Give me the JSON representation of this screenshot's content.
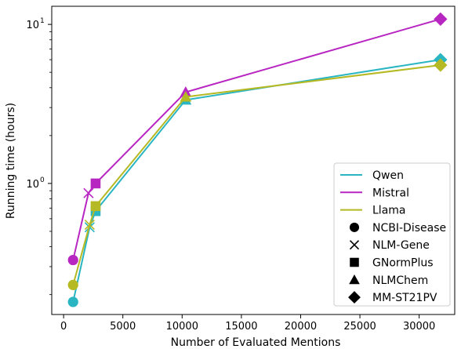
{
  "chart_data": {
    "type": "line",
    "title": "",
    "xlabel": "Number of Evaluated Mentions",
    "ylabel": "Running time (hours)",
    "yscale": "log",
    "xlim": [
      -1000,
      33000
    ],
    "ylim": [
      0.15,
      13
    ],
    "x_ticks": [
      0,
      5000,
      10000,
      15000,
      20000,
      25000,
      30000
    ],
    "x_tick_labels": [
      "0",
      "5000",
      "10000",
      "15000",
      "20000",
      "25000",
      "30000"
    ],
    "y_ticks": [
      1,
      10
    ],
    "y_tick_labels_base": [
      "10",
      "10"
    ],
    "y_tick_labels_exp": [
      "0",
      "1"
    ],
    "grid": false,
    "legend_position": "lower right",
    "series": [
      {
        "name": "Qwen",
        "color": "#2ab5c2",
        "points": [
          {
            "dataset": "NCBI-Disease",
            "x": 800,
            "y": 0.18
          },
          {
            "dataset": "NLM-Gene",
            "x": 2200,
            "y": 0.53
          },
          {
            "dataset": "GNormPlus",
            "x": 2700,
            "y": 0.67
          },
          {
            "dataset": "NLMChem",
            "x": 10300,
            "y": 3.35
          },
          {
            "dataset": "MM-ST21PV",
            "x": 31800,
            "y": 6.0
          }
        ]
      },
      {
        "name": "Mistral",
        "color": "#b826c2",
        "points": [
          {
            "dataset": "NCBI-Disease",
            "x": 800,
            "y": 0.33
          },
          {
            "dataset": "NLM-Gene",
            "x": 2100,
            "y": 0.87
          },
          {
            "dataset": "GNormPlus",
            "x": 2700,
            "y": 1.0
          },
          {
            "dataset": "NLMChem",
            "x": 10300,
            "y": 3.75
          },
          {
            "dataset": "MM-ST21PV",
            "x": 31800,
            "y": 10.8
          }
        ]
      },
      {
        "name": "Llama",
        "color": "#b5b923",
        "points": [
          {
            "dataset": "NCBI-Disease",
            "x": 800,
            "y": 0.23
          },
          {
            "dataset": "NLM-Gene",
            "x": 2200,
            "y": 0.55
          },
          {
            "dataset": "GNormPlus",
            "x": 2700,
            "y": 0.72
          },
          {
            "dataset": "NLMChem",
            "x": 10300,
            "y": 3.5
          },
          {
            "dataset": "MM-ST21PV",
            "x": 31800,
            "y": 5.55
          }
        ]
      }
    ],
    "marker_legend": [
      {
        "name": "NCBI-Disease",
        "marker": "circle"
      },
      {
        "name": "NLM-Gene",
        "marker": "x"
      },
      {
        "name": "GNormPlus",
        "marker": "square"
      },
      {
        "name": "NLMChem",
        "marker": "triangle"
      },
      {
        "name": "MM-ST21PV",
        "marker": "diamond"
      }
    ]
  }
}
